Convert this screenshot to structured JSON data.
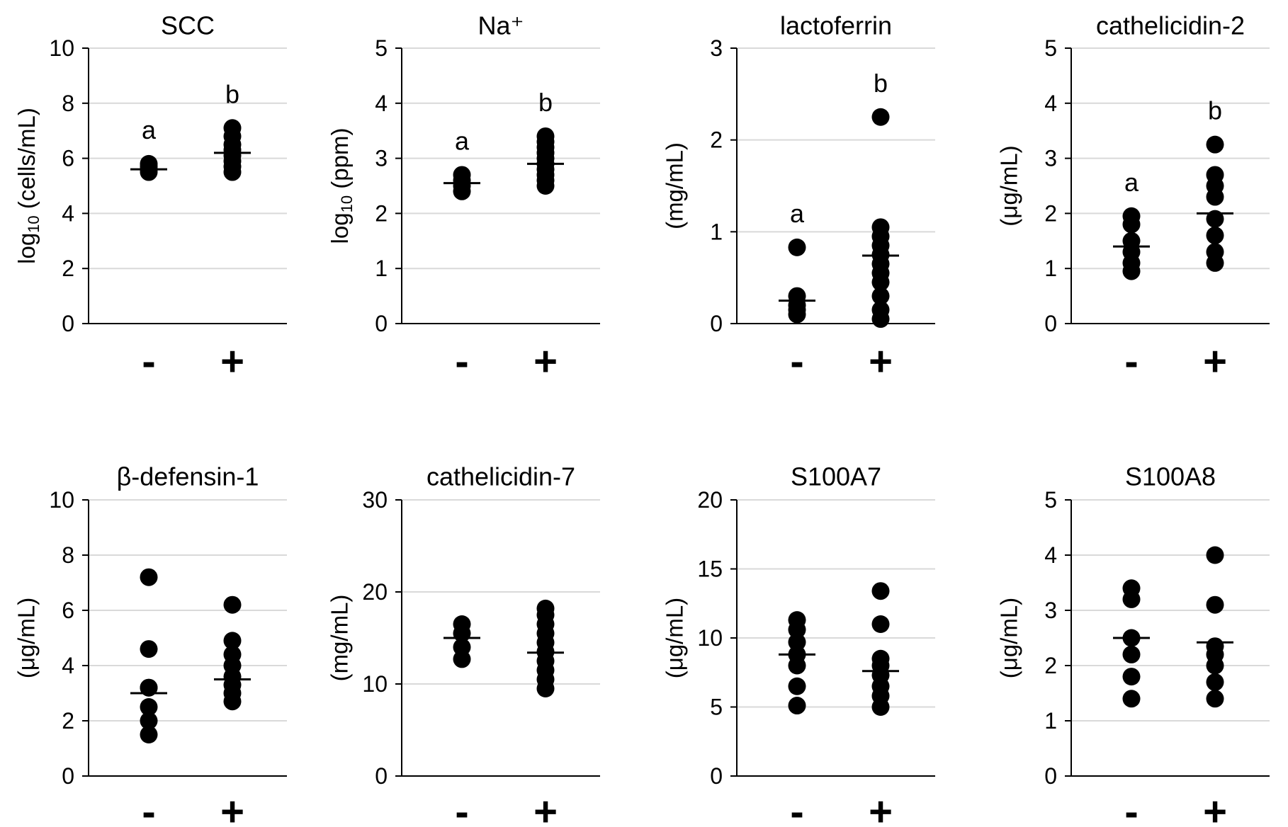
{
  "figure": {
    "background": "#ffffff",
    "grid_color": "#d9d9d9",
    "point_color": "#000000"
  },
  "chart_data": [
    {
      "type": "scatter",
      "title": "SCC",
      "ylabel": {
        "prefix": "log",
        "sub": "10",
        "suffix": " (cells/mL)"
      },
      "ylim": [
        0,
        10
      ],
      "yticks": [
        0,
        2,
        4,
        6,
        8,
        10
      ],
      "ytick_labels": [
        "0",
        "2",
        "4",
        "6",
        "8",
        "10"
      ],
      "categories": [
        "-",
        "+"
      ],
      "series": [
        {
          "name": "-",
          "values": [
            5.5,
            5.6,
            5.7,
            5.8
          ],
          "mean": 5.6,
          "letter": "a"
        },
        {
          "name": "+",
          "values": [
            5.5,
            5.7,
            5.9,
            6.1,
            6.3,
            6.5,
            6.8,
            7.1
          ],
          "mean": 6.2,
          "letter": "b"
        }
      ]
    },
    {
      "type": "scatter",
      "title": "Na⁺",
      "ylabel": {
        "prefix": "log",
        "sub": "10",
        "suffix": " (ppm)"
      },
      "ylim": [
        0,
        5
      ],
      "yticks": [
        0,
        1,
        2,
        3,
        4,
        5
      ],
      "ytick_labels": [
        "0",
        "1",
        "2",
        "3",
        "4",
        "5"
      ],
      "categories": [
        "-",
        "+"
      ],
      "series": [
        {
          "name": "-",
          "values": [
            2.4,
            2.5,
            2.6,
            2.7
          ],
          "mean": 2.55,
          "letter": "a"
        },
        {
          "name": "+",
          "values": [
            2.5,
            2.6,
            2.7,
            2.8,
            2.9,
            3.0,
            3.1,
            3.2,
            3.3,
            3.4
          ],
          "mean": 2.9,
          "letter": "b"
        }
      ]
    },
    {
      "type": "scatter",
      "title": "lactoferrin",
      "ylabel": {
        "prefix": "",
        "sub": "",
        "suffix": "(mg/mL)"
      },
      "ylim": [
        0,
        3
      ],
      "yticks": [
        0,
        1,
        2,
        3
      ],
      "ytick_labels": [
        "0",
        "1",
        "2",
        "3"
      ],
      "categories": [
        "-",
        "+"
      ],
      "series": [
        {
          "name": "-",
          "values": [
            0.1,
            0.15,
            0.2,
            0.3,
            0.83
          ],
          "mean": 0.25,
          "letter": "a"
        },
        {
          "name": "+",
          "values": [
            0.05,
            0.15,
            0.3,
            0.45,
            0.55,
            0.65,
            0.75,
            0.85,
            0.95,
            1.05,
            2.25
          ],
          "mean": 0.74,
          "letter": "b"
        }
      ]
    },
    {
      "type": "scatter",
      "title": "cathelicidin-2",
      "ylabel": {
        "prefix": "",
        "sub": "",
        "suffix": "(μg/mL)"
      },
      "ylim": [
        0,
        5
      ],
      "yticks": [
        0,
        1,
        2,
        3,
        4,
        5
      ],
      "ytick_labels": [
        "0",
        "1",
        "2",
        "3",
        "4",
        "5"
      ],
      "categories": [
        "-",
        "+"
      ],
      "series": [
        {
          "name": "-",
          "values": [
            0.95,
            1.1,
            1.3,
            1.5,
            1.8,
            1.95
          ],
          "mean": 1.4,
          "letter": "a"
        },
        {
          "name": "+",
          "values": [
            1.1,
            1.3,
            1.6,
            1.9,
            2.3,
            2.5,
            2.7,
            3.25
          ],
          "mean": 2.0,
          "letter": "b"
        }
      ]
    },
    {
      "type": "scatter",
      "title": "β-defensin-1",
      "ylabel": {
        "prefix": "",
        "sub": "",
        "suffix": "(μg/mL)"
      },
      "ylim": [
        0,
        10
      ],
      "yticks": [
        0,
        2,
        4,
        6,
        8,
        10
      ],
      "ytick_labels": [
        "0",
        "2",
        "4",
        "6",
        "8",
        "10"
      ],
      "categories": [
        "-",
        "+"
      ],
      "series": [
        {
          "name": "-",
          "values": [
            1.5,
            2.0,
            2.5,
            3.2,
            3.2,
            4.6,
            7.2
          ],
          "mean": 3.0,
          "letter": ""
        },
        {
          "name": "+",
          "values": [
            2.7,
            3.0,
            3.3,
            3.6,
            4.0,
            4.4,
            4.9,
            6.2
          ],
          "mean": 3.5,
          "letter": ""
        }
      ]
    },
    {
      "type": "scatter",
      "title": "cathelicidin-7",
      "ylabel": {
        "prefix": "",
        "sub": "",
        "suffix": "(mg/mL)"
      },
      "ylim": [
        0,
        30
      ],
      "yticks": [
        0,
        10,
        20,
        30
      ],
      "ytick_labels": [
        "0",
        "10",
        "20",
        "30"
      ],
      "categories": [
        "-",
        "+"
      ],
      "series": [
        {
          "name": "-",
          "values": [
            12.7,
            14.0,
            15.5,
            16.5
          ],
          "mean": 15.0,
          "letter": ""
        },
        {
          "name": "+",
          "values": [
            9.5,
            10.5,
            11.5,
            12.5,
            13.5,
            14.5,
            15.5,
            16.5,
            17.5,
            18.2
          ],
          "mean": 13.4,
          "letter": ""
        }
      ]
    },
    {
      "type": "scatter",
      "title": "S100A7",
      "ylabel": {
        "prefix": "",
        "sub": "",
        "suffix": "(μg/mL)"
      },
      "ylim": [
        0,
        20
      ],
      "yticks": [
        0,
        5,
        10,
        15,
        20
      ],
      "ytick_labels": [
        "0",
        "5",
        "10",
        "15",
        "20"
      ],
      "categories": [
        "-",
        "+"
      ],
      "series": [
        {
          "name": "-",
          "values": [
            5.1,
            6.5,
            8.0,
            8.8,
            9.7,
            10.6,
            11.3
          ],
          "mean": 8.8,
          "letter": ""
        },
        {
          "name": "+",
          "values": [
            5.0,
            5.8,
            6.5,
            7.3,
            8.0,
            8.5,
            11.0,
            13.4
          ],
          "mean": 7.6,
          "letter": ""
        }
      ]
    },
    {
      "type": "scatter",
      "title": "S100A8",
      "ylabel": {
        "prefix": "",
        "sub": "",
        "suffix": "(μg/mL)"
      },
      "ylim": [
        0,
        5
      ],
      "yticks": [
        0,
        1,
        2,
        3,
        4,
        5
      ],
      "ytick_labels": [
        "0",
        "1",
        "2",
        "3",
        "4",
        "5"
      ],
      "categories": [
        "-",
        "+"
      ],
      "series": [
        {
          "name": "-",
          "values": [
            1.4,
            1.8,
            2.2,
            2.5,
            3.2,
            3.4
          ],
          "mean": 2.5,
          "letter": ""
        },
        {
          "name": "+",
          "values": [
            1.4,
            1.7,
            2.0,
            2.2,
            2.35,
            3.1,
            4.0
          ],
          "mean": 2.42,
          "letter": ""
        }
      ]
    }
  ]
}
